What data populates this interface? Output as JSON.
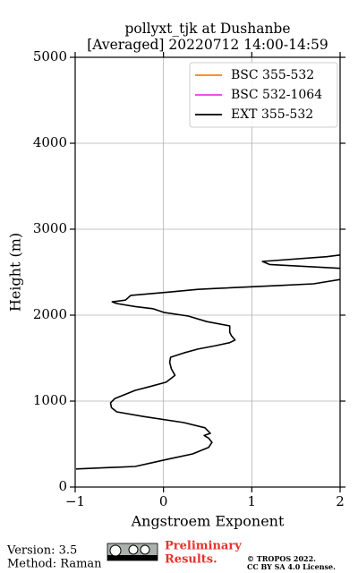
{
  "chart_data": {
    "type": "line",
    "title": "pollyxt_tjk at Dushanbe",
    "subtitle": "[Averaged] 20220712 14:00-14:59",
    "x_label": "Angstroem Exponent",
    "y_label": "Height (m)",
    "y": [
      210,
      240,
      290,
      320,
      385,
      460,
      520,
      570,
      600,
      625,
      690,
      750,
      820,
      875,
      925,
      980,
      1030,
      1125,
      1165,
      1220,
      1300,
      1375,
      1450,
      1510,
      1560,
      1605,
      1645,
      1680,
      1710,
      1760,
      1800,
      1875,
      1925,
      1990,
      2030,
      2075,
      2100,
      2135,
      2155,
      2175,
      2230,
      2270,
      2300,
      2310,
      2345,
      2365,
      2415,
      2480,
      2545,
      2590,
      2625,
      2680,
      2700
    ],
    "series": [
      {
        "name": "BSC 355-532",
        "color": "#ff7f0e",
        "values": [
          null,
          null,
          null,
          null,
          null,
          null,
          null,
          null,
          null,
          null,
          null,
          null,
          null,
          null,
          null,
          null,
          null,
          null,
          null,
          null,
          null,
          null,
          null,
          null,
          null,
          null,
          null,
          null,
          null,
          null,
          null,
          null,
          null,
          null,
          null,
          null,
          null,
          null,
          null,
          null,
          null,
          null,
          null,
          null,
          null,
          null,
          null,
          null,
          null,
          null,
          null,
          null,
          null
        ]
      },
      {
        "name": "BSC 532-1064",
        "color": "#e839e8",
        "values": [
          null,
          null,
          null,
          null,
          null,
          null,
          null,
          null,
          null,
          null,
          null,
          null,
          null,
          null,
          null,
          null,
          null,
          null,
          null,
          null,
          null,
          null,
          null,
          null,
          null,
          null,
          null,
          null,
          null,
          null,
          null,
          null,
          null,
          null,
          null,
          null,
          null,
          null,
          null,
          null,
          null,
          null,
          null,
          null,
          null,
          null,
          null,
          null,
          null,
          null,
          null,
          null,
          null
        ]
      },
      {
        "name": "EXT 355-532",
        "color": "#000000",
        "values": [
          -0.99,
          -0.32,
          -0.1,
          0.03,
          0.33,
          0.51,
          0.55,
          0.51,
          0.46,
          0.53,
          0.47,
          0.23,
          -0.22,
          -0.53,
          -0.59,
          -0.6,
          -0.55,
          -0.32,
          -0.17,
          0.03,
          0.13,
          0.09,
          0.07,
          0.08,
          0.23,
          0.39,
          0.59,
          0.75,
          0.81,
          0.77,
          0.75,
          0.75,
          0.49,
          0.28,
          0.01,
          -0.12,
          -0.32,
          -0.53,
          -0.58,
          -0.43,
          -0.37,
          0.08,
          0.39,
          0.59,
          1.3,
          1.7,
          2.0,
          null,
          2.0,
          1.2,
          1.12,
          1.85,
          2.0
        ]
      }
    ],
    "xlim": [
      -1,
      2
    ],
    "xticks": [
      {
        "value": -1,
        "label": "−1"
      },
      0,
      1,
      2
    ],
    "ylim": [
      0,
      5000
    ],
    "yticks": [
      0,
      1000,
      2000,
      3000,
      4000,
      5000
    ],
    "grid": true,
    "legend": "upper right"
  },
  "footer": {
    "version": "Version: 3.5",
    "method": "Method: Raman",
    "notice": [
      "Preliminary",
      "Results."
    ],
    "copyright": [
      "© TROPOS 2022.",
      "CC BY SA 4.0 License."
    ]
  }
}
